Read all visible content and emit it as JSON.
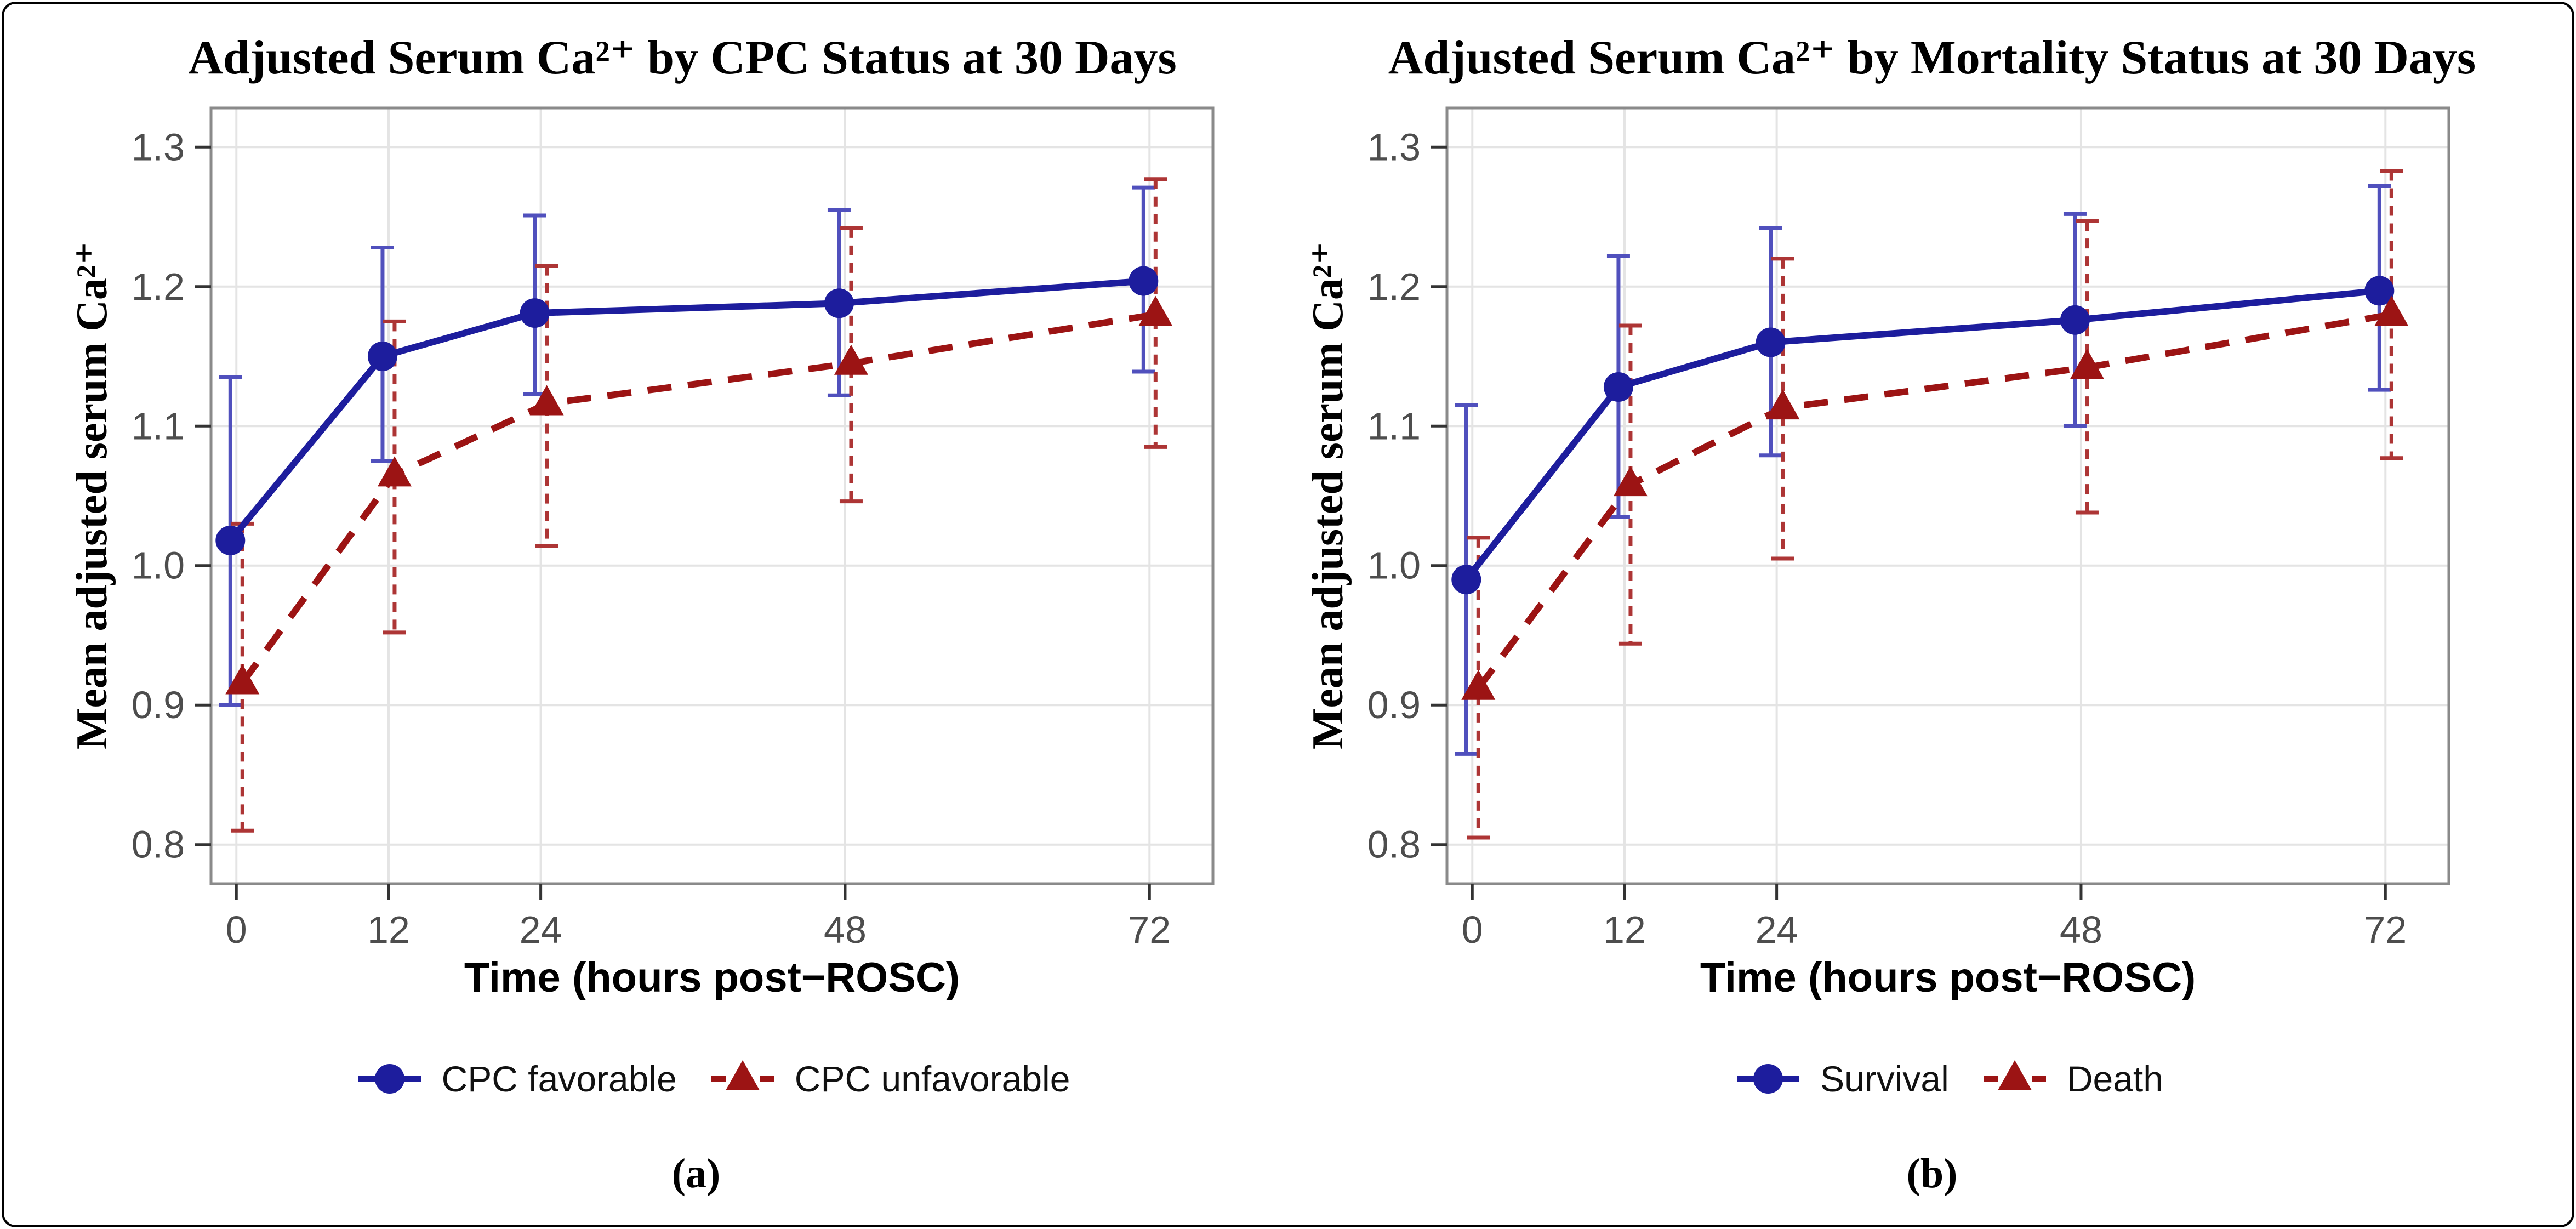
{
  "figure": {
    "background": "#ffffff",
    "frame_color": "#000000",
    "captions": {
      "a": "(a)",
      "b": "(b)"
    }
  },
  "chart_data": [
    {
      "type": "line",
      "panel": "a",
      "title": "Adjusted Serum Ca²⁺ by CPC Status at 30 Days",
      "xlabel": "Time (hours post−ROSC)",
      "ylabel": "Mean adjusted serum Ca²⁺",
      "caption": "(a)",
      "x": [
        0,
        12,
        24,
        48,
        72
      ],
      "xticks": [
        0,
        12,
        24,
        48,
        72
      ],
      "yticks": [
        0.8,
        0.9,
        1.0,
        1.1,
        1.2,
        1.3
      ],
      "xlim": [
        -2,
        77
      ],
      "ylim": [
        0.772,
        1.328
      ],
      "grid": true,
      "legend_position": "bottom",
      "style": {
        "grid_color": "#e4e4e4",
        "panel_border_color": "#8a8a8a",
        "tick_color": "#333333",
        "tick_label_color": "#4d4d4d"
      },
      "series": [
        {
          "name": "CPC favorable",
          "marker": "circle",
          "line": "solid",
          "color": "#1d1d9d",
          "errorbar_color": "#5050bd",
          "values": [
            1.018,
            1.15,
            1.181,
            1.188,
            1.204
          ],
          "lower": [
            0.9,
            1.075,
            1.123,
            1.122,
            1.139
          ],
          "upper": [
            1.135,
            1.228,
            1.251,
            1.255,
            1.271
          ]
        },
        {
          "name": "CPC unfavorable",
          "marker": "triangle",
          "line": "dashed",
          "color": "#9c1414",
          "errorbar_color": "#ad3535",
          "values": [
            0.916,
            1.065,
            1.116,
            1.145,
            1.18
          ],
          "lower": [
            0.81,
            0.952,
            1.014,
            1.046,
            1.085
          ],
          "upper": [
            1.03,
            1.175,
            1.215,
            1.242,
            1.277
          ]
        }
      ]
    },
    {
      "type": "line",
      "panel": "b",
      "title": "Adjusted Serum Ca²⁺ by Mortality Status at 30 Days",
      "xlabel": "Time (hours post−ROSC)",
      "ylabel": "Mean adjusted serum Ca²⁺",
      "caption": "(b)",
      "x": [
        0,
        12,
        24,
        48,
        72
      ],
      "xticks": [
        0,
        12,
        24,
        48,
        72
      ],
      "yticks": [
        0.8,
        0.9,
        1.0,
        1.1,
        1.2,
        1.3
      ],
      "xlim": [
        -2,
        77
      ],
      "ylim": [
        0.772,
        1.328
      ],
      "grid": true,
      "legend_position": "bottom",
      "style": {
        "grid_color": "#e4e4e4",
        "panel_border_color": "#8a8a8a",
        "tick_color": "#333333",
        "tick_label_color": "#4d4d4d"
      },
      "series": [
        {
          "name": "Survival",
          "marker": "circle",
          "line": "solid",
          "color": "#1d1d9d",
          "errorbar_color": "#5050bd",
          "values": [
            0.99,
            1.128,
            1.16,
            1.176,
            1.197
          ],
          "lower": [
            0.865,
            1.035,
            1.079,
            1.1,
            1.126
          ],
          "upper": [
            1.115,
            1.222,
            1.242,
            1.252,
            1.272
          ]
        },
        {
          "name": "Death",
          "marker": "triangle",
          "line": "dashed",
          "color": "#9c1414",
          "errorbar_color": "#ad3535",
          "values": [
            0.912,
            1.058,
            1.113,
            1.142,
            1.18
          ],
          "lower": [
            0.805,
            0.944,
            1.005,
            1.038,
            1.077
          ],
          "upper": [
            1.02,
            1.172,
            1.22,
            1.247,
            1.283
          ]
        }
      ]
    }
  ]
}
